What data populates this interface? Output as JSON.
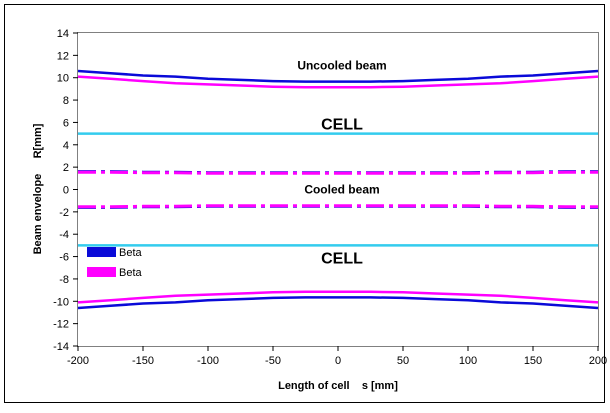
{
  "chart_data": {
    "type": "line",
    "title": "",
    "xlabel": "Length of cell    s [mm]",
    "ylabel": "Beam envelope     R[mm]",
    "xlim": [
      -200,
      200
    ],
    "ylim": [
      -14,
      14
    ],
    "x_ticks": [
      "-200",
      "-150",
      "-100",
      "-50",
      "0",
      "50",
      "100",
      "150",
      "200"
    ],
    "y_ticks": [
      "-14",
      "-12",
      "-10",
      "-8",
      "-6",
      "-4",
      "-2",
      "0",
      "2",
      "4",
      "6",
      "8",
      "10",
      "12",
      "14"
    ],
    "grid": false,
    "legend_position": "lower-left",
    "legend": [
      {
        "label": "Beta",
        "color": "#0a0ad8"
      },
      {
        "label": "Beta",
        "color": "#ff00ff"
      }
    ],
    "annotations": [
      {
        "text": "Uncooled beam",
        "x": 0,
        "y": 11.1
      },
      {
        "text": "CELL",
        "x": 0,
        "y": 6
      },
      {
        "text": "Cooled beam",
        "x": 0,
        "y": 0
      },
      {
        "text": "CELL",
        "x": 0,
        "y": -6
      }
    ],
    "x": [
      -200,
      -175,
      -150,
      -125,
      -100,
      -75,
      -50,
      -25,
      0,
      25,
      50,
      75,
      100,
      125,
      150,
      175,
      200
    ],
    "series": [
      {
        "color": "#0a0ad8",
        "style": "solid",
        "width": 2.5,
        "values": [
          10.6,
          10.4,
          10.2,
          10.1,
          9.9,
          9.8,
          9.7,
          9.65,
          9.65,
          9.65,
          9.7,
          9.8,
          9.9,
          10.1,
          10.2,
          10.4,
          10.6
        ]
      },
      {
        "color": "#ff00ff",
        "style": "solid",
        "width": 2.5,
        "values": [
          10.1,
          9.9,
          9.7,
          9.5,
          9.4,
          9.3,
          9.2,
          9.15,
          9.15,
          9.15,
          9.2,
          9.3,
          9.4,
          9.5,
          9.7,
          9.9,
          10.1
        ]
      },
      {
        "color": "#0a0ad8",
        "style": "solid",
        "width": 2.5,
        "values": [
          -10.6,
          -10.4,
          -10.2,
          -10.1,
          -9.9,
          -9.8,
          -9.7,
          -9.65,
          -9.65,
          -9.65,
          -9.7,
          -9.8,
          -9.9,
          -10.1,
          -10.2,
          -10.4,
          -10.6
        ]
      },
      {
        "color": "#ff00ff",
        "style": "solid",
        "width": 2.5,
        "values": [
          -10.1,
          -9.9,
          -9.7,
          -9.5,
          -9.4,
          -9.3,
          -9.2,
          -9.15,
          -9.15,
          -9.15,
          -9.2,
          -9.3,
          -9.4,
          -9.5,
          -9.7,
          -9.9,
          -10.1
        ]
      },
      {
        "color": "#0a0ad8",
        "style": "dashdot",
        "width": 3,
        "values": [
          1.6,
          1.6,
          1.55,
          1.55,
          1.5,
          1.5,
          1.5,
          1.5,
          1.5,
          1.5,
          1.5,
          1.5,
          1.5,
          1.55,
          1.55,
          1.6,
          1.6
        ]
      },
      {
        "color": "#ff00ff",
        "style": "dashdot",
        "width": 3,
        "values": [
          1.55,
          1.55,
          1.5,
          1.5,
          1.45,
          1.45,
          1.45,
          1.45,
          1.45,
          1.45,
          1.45,
          1.45,
          1.45,
          1.5,
          1.5,
          1.55,
          1.55
        ]
      },
      {
        "color": "#0a0ad8",
        "style": "dashdot",
        "width": 3,
        "values": [
          -1.6,
          -1.6,
          -1.55,
          -1.55,
          -1.5,
          -1.5,
          -1.5,
          -1.5,
          -1.5,
          -1.5,
          -1.5,
          -1.5,
          -1.5,
          -1.55,
          -1.55,
          -1.6,
          -1.6
        ]
      },
      {
        "color": "#ff00ff",
        "style": "dashdot",
        "width": 3,
        "values": [
          -1.55,
          -1.55,
          -1.5,
          -1.5,
          -1.45,
          -1.45,
          -1.45,
          -1.45,
          -1.45,
          -1.45,
          -1.45,
          -1.45,
          -1.45,
          -1.5,
          -1.5,
          -1.55,
          -1.55
        ]
      },
      {
        "color": "#33ccee",
        "style": "solid",
        "width": 2.5,
        "values": [
          5,
          5,
          5,
          5,
          5,
          5,
          5,
          5,
          5,
          5,
          5,
          5,
          5,
          5,
          5,
          5,
          5
        ]
      },
      {
        "color": "#33ccee",
        "style": "solid",
        "width": 2.5,
        "values": [
          -5,
          -5,
          -5,
          -5,
          -5,
          -5,
          -5,
          -5,
          -5,
          -5,
          -5,
          -5,
          -5,
          -5,
          -5,
          -5,
          -5
        ]
      }
    ]
  }
}
